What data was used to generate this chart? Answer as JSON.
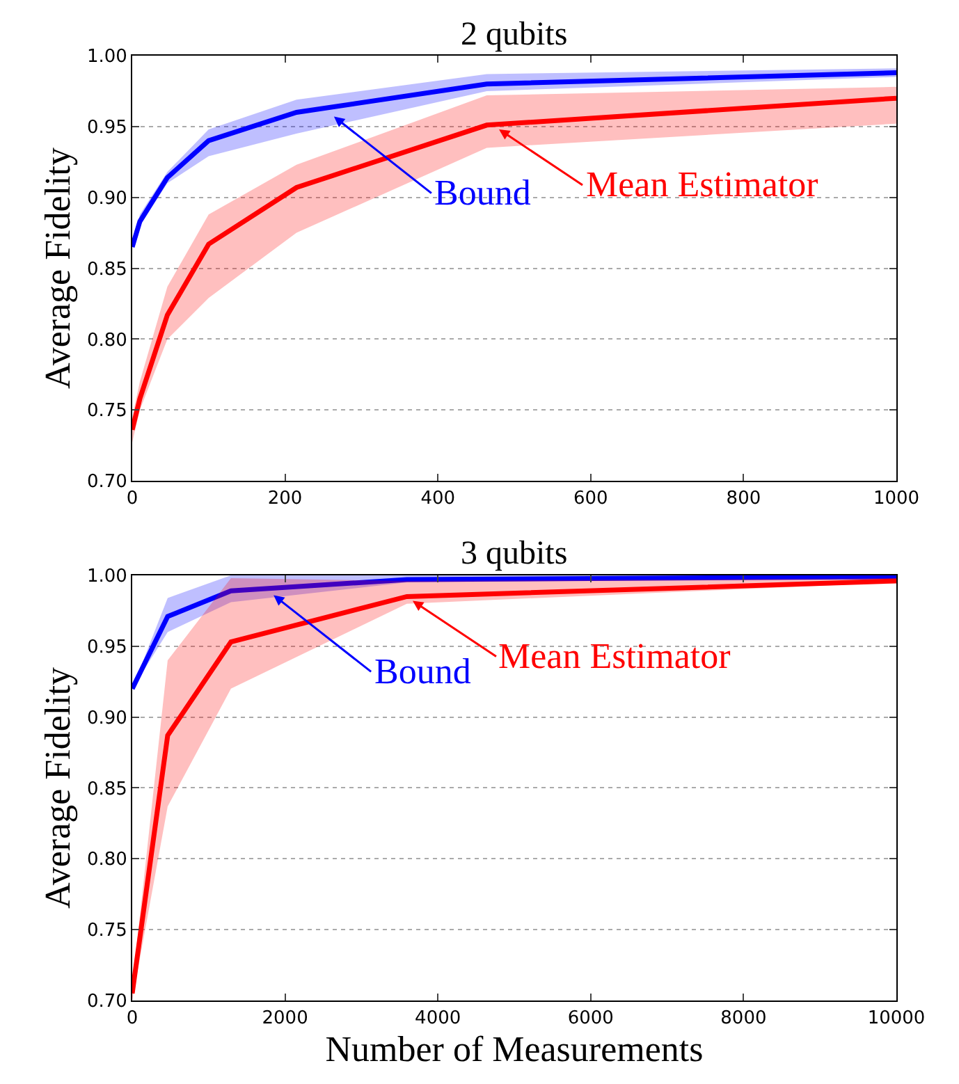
{
  "chart_data": [
    {
      "type": "line",
      "title": "2 qubits",
      "ylabel": "Average Fidelity",
      "xlim": [
        0,
        1000
      ],
      "xticks": [
        0,
        200,
        400,
        600,
        800,
        1000
      ],
      "ylim": [
        0.7,
        1.0
      ],
      "yticks": [
        {
          "value": 0.7,
          "label": "0.70"
        },
        {
          "value": 0.75,
          "label": "0.75"
        },
        {
          "value": 0.8,
          "label": "0.80"
        },
        {
          "value": 0.85,
          "label": "0.85"
        },
        {
          "value": 0.9,
          "label": "0.90"
        },
        {
          "value": 0.95,
          "label": "0.95"
        },
        {
          "value": 1.0,
          "label": "1.00"
        }
      ],
      "grid": "y",
      "marker": "none",
      "line_style": "solid",
      "series": [
        {
          "color": "#0000ff",
          "x": [
            0,
            10,
            46,
            100,
            215,
            464,
            1000
          ],
          "values": [
            0.865,
            0.883,
            0.914,
            0.94,
            0.96,
            0.98,
            0.988
          ],
          "lower": [
            0.865,
            0.88,
            0.91,
            0.929,
            0.945,
            0.975,
            0.985
          ],
          "upper": [
            0.865,
            0.888,
            0.918,
            0.948,
            0.969,
            0.987,
            0.991
          ]
        },
        {
          "color": "#ff0000",
          "x": [
            0,
            10,
            46,
            100,
            215,
            464,
            1000
          ],
          "values": [
            0.736,
            0.758,
            0.817,
            0.867,
            0.907,
            0.951,
            0.97
          ],
          "lower": [
            0.727,
            0.75,
            0.8,
            0.829,
            0.875,
            0.935,
            0.952
          ],
          "upper": [
            0.745,
            0.77,
            0.837,
            0.888,
            0.923,
            0.972,
            0.978
          ]
        }
      ],
      "annotations": [
        {
          "text": "Bound",
          "x": 264,
          "y": 0.957
        },
        {
          "text": "Mean Estimator",
          "x": 480,
          "y": 0.948
        }
      ]
    },
    {
      "type": "line",
      "title": "3 qubits",
      "xlabel": "Number of Measurements",
      "ylabel": "Average Fidelity",
      "xlim": [
        0,
        10000
      ],
      "xticks": [
        0,
        2000,
        4000,
        6000,
        8000,
        10000
      ],
      "ylim": [
        0.7,
        1.0
      ],
      "yticks": [
        {
          "value": 0.7,
          "label": "0.70"
        },
        {
          "value": 0.75,
          "label": "0.75"
        },
        {
          "value": 0.8,
          "label": "0.80"
        },
        {
          "value": 0.85,
          "label": "0.85"
        },
        {
          "value": 0.9,
          "label": "0.90"
        },
        {
          "value": 0.95,
          "label": "0.95"
        },
        {
          "value": 1.0,
          "label": "1.00"
        }
      ],
      "grid": "y",
      "marker": "none",
      "line_style": "solid",
      "series": [
        {
          "color": "#0000ff",
          "x": [
            0,
            464,
            1292,
            3594,
            10000
          ],
          "values": [
            0.92,
            0.971,
            0.989,
            0.997,
            0.999
          ],
          "lower": [
            0.92,
            0.96,
            0.981,
            0.995,
            0.998
          ],
          "upper": [
            0.92,
            0.984,
            1.0,
            1.0,
            1.0
          ]
        },
        {
          "color": "#ff0000",
          "x": [
            0,
            464,
            1292,
            3594,
            10000
          ],
          "values": [
            0.705,
            0.887,
            0.953,
            0.985,
            0.996
          ],
          "lower": [
            0.7,
            0.837,
            0.92,
            0.98,
            0.995
          ],
          "upper": [
            0.71,
            0.94,
            0.998,
            0.996,
            0.998
          ]
        }
      ],
      "annotations": [
        {
          "text": "Bound",
          "x": 1850,
          "y": 0.986
        },
        {
          "text": "Mean Estimator",
          "x": 3670,
          "y": 0.982
        }
      ]
    }
  ]
}
